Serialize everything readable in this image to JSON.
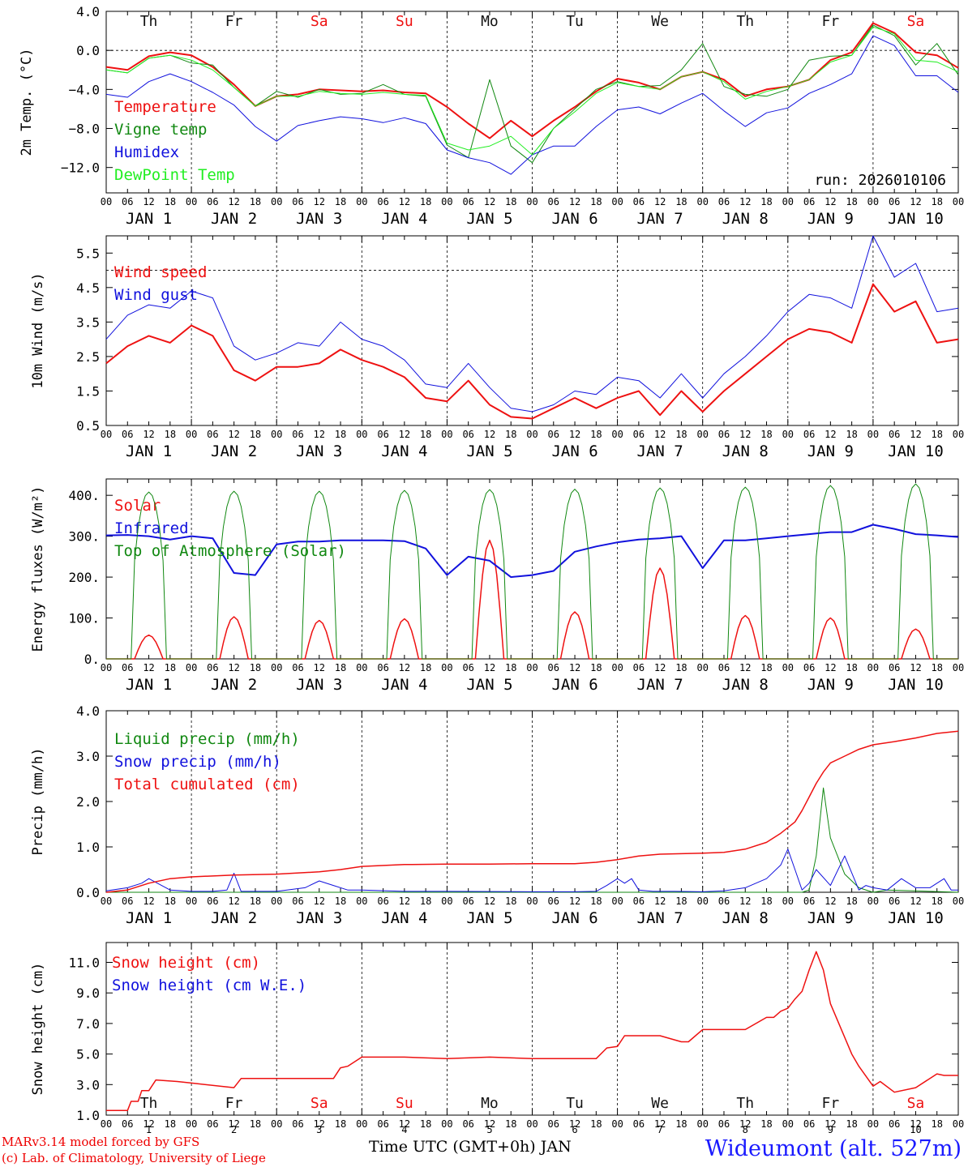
{
  "colors": {
    "red": "#ee1111",
    "green": "#118811",
    "blue": "#1111dd",
    "lightgreen": "#22ee22",
    "day_red": "#ee1111",
    "day_black": "#111111",
    "credit_red": "#ee0000",
    "station_blue": "#1a1aff"
  },
  "day_labels": [
    "Th",
    "Fr",
    "Sa",
    "Su",
    "Mo",
    "Tu",
    "We",
    "Th",
    "Fr",
    "Sa"
  ],
  "weekend_days": [
    "Sa",
    "Su"
  ],
  "hour_ticks": [
    "00",
    "06",
    "12",
    "18"
  ],
  "date_labels": [
    "JAN  1",
    "JAN  2",
    "JAN  3",
    "JAN  4",
    "JAN  5",
    "JAN  6",
    "JAN  7",
    "JAN  8",
    "JAN  9",
    "JAN 10"
  ],
  "bottom_day_numbers": [
    "1",
    "2",
    "3",
    "4",
    "5",
    "6",
    "7",
    "8",
    "9",
    "10"
  ],
  "footer": {
    "model": "MARv3.14 model forced by GFS",
    "lab": "(c) Lab. of Climatology, University of Liege",
    "xlabel": "Time UTC (GMT+0h) JAN",
    "station": "Wideumont (alt. 527m)"
  },
  "chart_data": [
    {
      "type": "line",
      "ylabel": "2m Temp. (°C)",
      "ylim": [
        -14.6,
        4.0
      ],
      "yticks": [
        4.0,
        0.0,
        -4.0,
        -8.0,
        -12.0
      ],
      "ytick_labels": [
        "4.0",
        "0.0",
        "−4.0",
        "−8.0",
        "−12.0"
      ],
      "ref_line": 0.0,
      "run_label": "run: 2026010106",
      "x_hours": [
        0,
        6,
        12,
        18,
        24,
        30,
        36,
        42,
        48,
        54,
        60,
        66,
        72,
        78,
        84,
        90,
        96,
        102,
        108,
        114,
        120,
        126,
        132,
        138,
        144,
        150,
        156,
        162,
        168,
        174,
        180,
        186,
        192,
        198,
        204,
        210,
        216,
        222,
        228,
        234,
        240
      ],
      "series": [
        {
          "name": "Temperature",
          "color": "red",
          "width": 2,
          "values": [
            -1.7,
            -2.0,
            -0.6,
            -0.2,
            -0.5,
            -1.7,
            -3.5,
            -5.7,
            -4.7,
            -4.5,
            -4.0,
            -4.1,
            -4.2,
            -4.1,
            -4.3,
            -4.4,
            -5.8,
            -7.5,
            -9.0,
            -7.2,
            -8.8,
            -7.2,
            -5.8,
            -4.2,
            -2.9,
            -3.3,
            -4.0,
            -2.7,
            -2.2,
            -3.0,
            -4.7,
            -4.0,
            -3.7,
            -3.0,
            -1.0,
            -0.2,
            2.8,
            1.8,
            -0.2,
            -0.5,
            -1.8
          ]
        },
        {
          "name": "Vigne temp",
          "color": "green",
          "width": 1,
          "values": [
            -2.0,
            -2.3,
            -0.8,
            -0.5,
            -1.3,
            -1.5,
            -3.8,
            -5.7,
            -4.2,
            -4.8,
            -4.0,
            -4.5,
            -4.4,
            -3.5,
            -4.5,
            -4.7,
            -9.7,
            -11.0,
            -3.0,
            -9.8,
            -11.5,
            -8.0,
            -6.0,
            -4.0,
            -3.2,
            -3.7,
            -3.6,
            -2.0,
            0.7,
            -3.7,
            -4.5,
            -4.7,
            -4.0,
            -1.0,
            -0.6,
            -0.5,
            2.6,
            1.5,
            -1.5,
            0.7,
            -2.5
          ]
        },
        {
          "name": "Humidex",
          "color": "blue",
          "width": 1,
          "values": [
            -4.5,
            -4.8,
            -3.2,
            -2.4,
            -3.2,
            -4.3,
            -5.6,
            -7.8,
            -9.3,
            -7.7,
            -7.2,
            -6.8,
            -7.0,
            -7.4,
            -6.9,
            -7.5,
            -10.2,
            -11.0,
            -11.5,
            -12.7,
            -10.7,
            -9.8,
            -9.8,
            -7.8,
            -6.1,
            -5.8,
            -6.5,
            -5.4,
            -4.4,
            -6.2,
            -7.8,
            -6.4,
            -5.9,
            -4.4,
            -3.5,
            -2.4,
            1.5,
            0.5,
            -2.6,
            -2.6,
            -4.3
          ]
        },
        {
          "name": "DewPoint Temp",
          "color": "lightgreen",
          "width": 1,
          "values": [
            -2.0,
            -2.3,
            -0.8,
            -0.5,
            -1.0,
            -2.0,
            -3.8,
            -5.7,
            -4.7,
            -4.7,
            -4.2,
            -4.4,
            -4.5,
            -4.3,
            -4.5,
            -4.6,
            -9.5,
            -10.2,
            -9.8,
            -8.8,
            -10.7,
            -8.0,
            -6.3,
            -4.4,
            -3.3,
            -3.7,
            -4.0,
            -2.7,
            -2.2,
            -3.2,
            -5.0,
            -4.2,
            -3.7,
            -3.0,
            -1.2,
            -0.5,
            2.4,
            1.7,
            -1.0,
            -1.2,
            -2.2
          ]
        }
      ]
    },
    {
      "type": "line",
      "ylabel": "10m Wind (m/s)",
      "ylim": [
        0.5,
        6.0
      ],
      "yticks": [
        5.5,
        4.5,
        3.5,
        2.5,
        1.5,
        0.5
      ],
      "ytick_labels": [
        "5.5",
        "4.5",
        "3.5",
        "2.5",
        "1.5",
        "0.5"
      ],
      "ref_line": 5.0,
      "x_hours": [
        0,
        6,
        12,
        18,
        24,
        30,
        36,
        42,
        48,
        54,
        60,
        66,
        72,
        78,
        84,
        90,
        96,
        102,
        108,
        114,
        120,
        126,
        132,
        138,
        144,
        150,
        156,
        162,
        168,
        174,
        180,
        186,
        192,
        198,
        204,
        210,
        216,
        222,
        228,
        234,
        240
      ],
      "series": [
        {
          "name": "Wind speed",
          "color": "red",
          "width": 2,
          "values": [
            2.3,
            2.8,
            3.1,
            2.9,
            3.4,
            3.1,
            2.1,
            1.8,
            2.2,
            2.2,
            2.3,
            2.7,
            2.4,
            2.2,
            1.9,
            1.3,
            1.2,
            1.8,
            1.1,
            0.75,
            0.7,
            1.0,
            1.3,
            1.0,
            1.3,
            1.5,
            0.8,
            1.5,
            0.9,
            1.5,
            2.0,
            2.5,
            3.0,
            3.3,
            3.2,
            2.9,
            4.6,
            3.8,
            4.1,
            2.9,
            3.0
          ]
        },
        {
          "name": "Wind gust",
          "color": "blue",
          "width": 1,
          "values": [
            3.0,
            3.7,
            4.0,
            3.9,
            4.4,
            4.2,
            2.8,
            2.4,
            2.6,
            2.9,
            2.8,
            3.5,
            3.0,
            2.8,
            2.4,
            1.7,
            1.6,
            2.3,
            1.6,
            1.0,
            0.9,
            1.1,
            1.5,
            1.4,
            1.9,
            1.8,
            1.3,
            2.0,
            1.3,
            2.0,
            2.5,
            3.1,
            3.8,
            4.3,
            4.2,
            3.9,
            6.0,
            4.8,
            5.2,
            3.8,
            3.9
          ]
        }
      ]
    },
    {
      "type": "line",
      "ylabel": "Energy fluxes (W/m²)",
      "ylim": [
        0,
        440
      ],
      "yticks": [
        400,
        300,
        200,
        100,
        0
      ],
      "ytick_labels": [
        "400.",
        "300.",
        "200.",
        "100.",
        "0."
      ],
      "ref_line": null,
      "toa_peaks": [
        408,
        410,
        410,
        412,
        414,
        415,
        418,
        420,
        424,
        428
      ],
      "solar_peaks": [
        58,
        103,
        94,
        98,
        290,
        115,
        222,
        106,
        100,
        73
      ],
      "series": [
        {
          "name": "Solar",
          "color": "red",
          "width": 1.5
        },
        {
          "name": "Infrared",
          "color": "blue",
          "width": 2,
          "x_hours": [
            0,
            6,
            12,
            18,
            24,
            30,
            36,
            42,
            48,
            54,
            60,
            66,
            72,
            78,
            84,
            90,
            96,
            102,
            108,
            114,
            120,
            126,
            132,
            138,
            144,
            150,
            156,
            162,
            168,
            174,
            180,
            186,
            192,
            198,
            204,
            210,
            216,
            222,
            228,
            234,
            240
          ],
          "values": [
            302,
            303,
            300,
            292,
            300,
            295,
            210,
            205,
            280,
            287,
            287,
            290,
            290,
            290,
            288,
            270,
            205,
            250,
            240,
            200,
            205,
            215,
            262,
            275,
            285,
            292,
            295,
            300,
            222,
            290,
            290,
            295,
            300,
            305,
            310,
            310,
            328,
            318,
            305,
            302,
            298
          ]
        },
        {
          "name": "Top of Atmosphere (Solar)",
          "color": "green",
          "width": 1
        }
      ]
    },
    {
      "type": "line",
      "ylabel": "Precip (mm/h)",
      "ylim": [
        0,
        4.0
      ],
      "yticks": [
        4.0,
        3.0,
        2.0,
        1.0,
        0.0
      ],
      "ytick_labels": [
        "4.0",
        "3.0",
        "2.0",
        "1.0",
        "0.0"
      ],
      "ref_line": null,
      "series": [
        {
          "name": "Liquid precip (mm/h)",
          "color": "green",
          "width": 1,
          "x_hours": [
            0,
            186,
            190,
            192,
            194,
            196,
            198,
            200,
            202,
            204,
            208,
            212,
            216,
            220,
            240
          ],
          "values": [
            0,
            0,
            0,
            0,
            0,
            0,
            0.05,
            0.8,
            2.3,
            1.2,
            0.4,
            0.1,
            0,
            0.05,
            0
          ]
        },
        {
          "name": "Snow precip (mm/h)",
          "color": "blue",
          "width": 1,
          "x_hours": [
            0,
            6,
            10,
            12,
            18,
            24,
            30,
            34,
            36,
            38,
            42,
            48,
            56,
            60,
            64,
            68,
            72,
            84,
            96,
            120,
            132,
            138,
            141,
            144,
            146,
            148,
            150,
            154,
            160,
            168,
            174,
            180,
            186,
            190,
            192,
            194,
            196,
            198,
            200,
            204,
            208,
            212,
            214,
            216,
            220,
            224,
            228,
            232,
            236,
            238,
            240
          ],
          "values": [
            0.03,
            0.1,
            0.2,
            0.3,
            0.05,
            0.02,
            0.02,
            0.05,
            0.42,
            0.02,
            0.02,
            0.02,
            0.1,
            0.25,
            0.15,
            0.05,
            0.05,
            0.02,
            0.02,
            0.01,
            0.01,
            0.02,
            0.15,
            0.3,
            0.2,
            0.3,
            0.05,
            0.02,
            0.02,
            0.01,
            0.03,
            0.1,
            0.3,
            0.6,
            0.95,
            0.5,
            0.05,
            0.2,
            0.5,
            0.15,
            0.8,
            0.05,
            0.15,
            0.1,
            0.05,
            0.3,
            0.1,
            0.1,
            0.3,
            0.05,
            0.05
          ]
        },
        {
          "name": "Total cumulated (cm)",
          "color": "red",
          "width": 1.5,
          "x_hours": [
            0,
            6,
            12,
            18,
            24,
            36,
            48,
            60,
            66,
            72,
            84,
            96,
            108,
            120,
            132,
            138,
            144,
            150,
            156,
            168,
            174,
            180,
            186,
            190,
            194,
            196,
            198,
            200,
            202,
            204,
            208,
            212,
            216,
            222,
            228,
            234,
            240
          ],
          "values": [
            0,
            0.05,
            0.2,
            0.3,
            0.34,
            0.38,
            0.4,
            0.45,
            0.5,
            0.57,
            0.61,
            0.62,
            0.62,
            0.63,
            0.63,
            0.66,
            0.72,
            0.8,
            0.84,
            0.86,
            0.88,
            0.95,
            1.1,
            1.3,
            1.55,
            1.8,
            2.1,
            2.4,
            2.65,
            2.85,
            3.0,
            3.15,
            3.25,
            3.32,
            3.4,
            3.5,
            3.55
          ]
        }
      ]
    },
    {
      "type": "line",
      "ylabel": "Snow height (cm)",
      "ylim": [
        1.0,
        12.3
      ],
      "yticks": [
        11.0,
        9.0,
        7.0,
        5.0,
        3.0,
        1.0
      ],
      "ytick_labels": [
        "11.0",
        "9.0",
        "7.0",
        "5.0",
        "3.0",
        "1.0"
      ],
      "ref_line": null,
      "series": [
        {
          "name": "Snow height (cm)",
          "color": "red",
          "width": 1.5,
          "x_hours": [
            0,
            6,
            7,
            9,
            10,
            12,
            14,
            20,
            24,
            36,
            38,
            42,
            48,
            60,
            64,
            66,
            68,
            72,
            84,
            96,
            108,
            120,
            132,
            138,
            141,
            144,
            146,
            150,
            156,
            162,
            164,
            168,
            174,
            180,
            186,
            188,
            190,
            192,
            194,
            196,
            198,
            200,
            202,
            204,
            210,
            212,
            216,
            218,
            222,
            228,
            234,
            236,
            240
          ],
          "values": [
            1.3,
            1.3,
            1.9,
            1.9,
            2.6,
            2.6,
            3.3,
            3.2,
            3.1,
            2.8,
            3.4,
            3.4,
            3.4,
            3.4,
            3.4,
            4.1,
            4.2,
            4.8,
            4.8,
            4.7,
            4.8,
            4.7,
            4.7,
            4.7,
            5.4,
            5.5,
            6.2,
            6.2,
            6.2,
            5.8,
            5.8,
            6.6,
            6.6,
            6.6,
            7.4,
            7.4,
            7.8,
            8.0,
            8.6,
            9.1,
            10.5,
            11.7,
            10.5,
            8.3,
            5.0,
            4.2,
            2.9,
            3.2,
            2.5,
            2.8,
            3.7,
            3.6,
            3.6
          ]
        },
        {
          "name": "Snow height (cm W.E.)",
          "color": "blue",
          "width": 1
        }
      ]
    }
  ]
}
